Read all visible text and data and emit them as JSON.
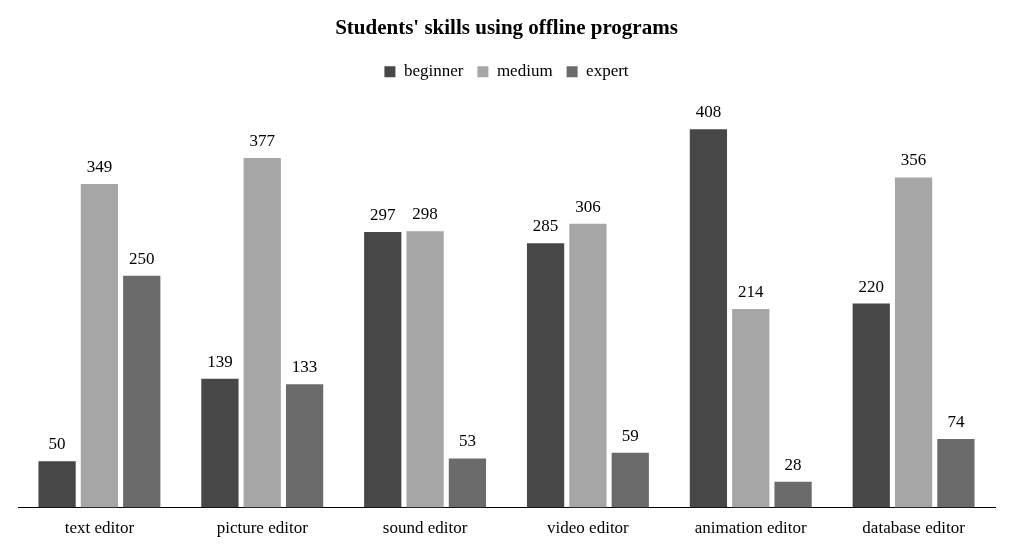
{
  "chart_data": {
    "type": "bar",
    "title": "Students' skills using offline programs",
    "categories": [
      "text editor",
      "picture editor",
      "sound editor",
      "video editor",
      "animation editor",
      "database editor"
    ],
    "series": [
      {
        "name": "beginner",
        "color": "#474747",
        "values": [
          50,
          139,
          297,
          285,
          408,
          220
        ]
      },
      {
        "name": "medium",
        "color": "#a6a6a6",
        "values": [
          349,
          377,
          298,
          306,
          214,
          356
        ]
      },
      {
        "name": "expert",
        "color": "#6b6b6b",
        "values": [
          250,
          133,
          53,
          59,
          28,
          74
        ]
      }
    ],
    "data_labels": true,
    "grid": false,
    "legend": "top"
  }
}
